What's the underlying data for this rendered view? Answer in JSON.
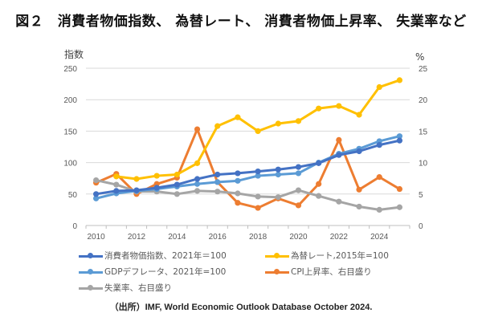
{
  "title": "図２　消費者物価指数、 為替レート、 消費者物価上昇率、 失業率など",
  "source": "（出所）IMF, World Economic Outlook Database October 2024.",
  "chart_data": {
    "type": "line",
    "title": "図２　消費者物価指数、 為替レート、 消費者物価上昇率、 失業率など",
    "x": [
      2010,
      2011,
      2012,
      2013,
      2014,
      2015,
      2016,
      2017,
      2018,
      2019,
      2020,
      2021,
      2022,
      2023,
      2024,
      2025
    ],
    "x_tick_labels": [
      "2010",
      "2012",
      "2014",
      "2016",
      "2018",
      "2020",
      "2022",
      "2024"
    ],
    "ylabel_left": "指数",
    "ylabel_right": "%",
    "ylim_left": [
      0,
      250
    ],
    "ylim_right": [
      0,
      25
    ],
    "yticks_left": [
      "0",
      "50",
      "100",
      "150",
      "200",
      "250"
    ],
    "yticks_right": [
      "0",
      "5",
      "10",
      "15",
      "20",
      "25"
    ],
    "grid": true,
    "legend_position": "bottom",
    "series": [
      {
        "name": "消費者物価指数、2021年＝100",
        "axis": "left",
        "color": "#4472C4",
        "values": [
          50,
          55,
          56,
          60,
          65,
          74,
          81,
          83,
          86,
          89,
          93,
          99,
          112,
          118,
          128,
          135
        ]
      },
      {
        "name": "為替レート,2015年=100",
        "axis": "left",
        "color": "#FFC000",
        "values": [
          null,
          78,
          74,
          79,
          81,
          99,
          158,
          172,
          150,
          162,
          166,
          186,
          190,
          176,
          220,
          231
        ]
      },
      {
        "name": "GDPデフレータ、2021年=100",
        "axis": "left",
        "color": "#5B9BD5",
        "values": [
          43,
          51,
          55,
          58,
          62,
          66,
          69,
          71,
          79,
          81,
          83,
          100,
          114,
          122,
          134,
          142
        ]
      },
      {
        "name": "CPI上昇率、右目盛り",
        "axis": "right",
        "color": "#ED7D31",
        "values": [
          6.8,
          8.2,
          5.0,
          6.6,
          7.6,
          15.3,
          6.9,
          3.6,
          2.8,
          4.3,
          3.2,
          6.6,
          13.6,
          5.7,
          7.7,
          5.8
        ]
      },
      {
        "name": "失業率、右目盛り",
        "axis": "right",
        "color": "#A5A5A5",
        "values": [
          7.2,
          6.5,
          5.4,
          5.4,
          5.0,
          5.5,
          5.4,
          5.1,
          4.6,
          4.5,
          5.6,
          4.7,
          3.8,
          3.0,
          2.5,
          2.9
        ]
      }
    ]
  }
}
